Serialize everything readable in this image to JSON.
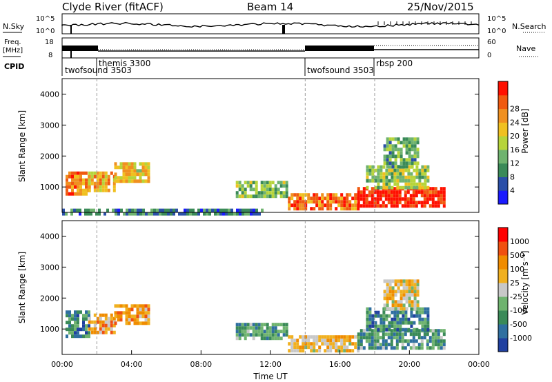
{
  "header": {
    "station": "Clyde River (fitACF)",
    "beam": "Beam 14",
    "date": "25/Nov/2015"
  },
  "strip_labels": {
    "nsky": "N.Sky",
    "nsky_ticks": [
      "10^5",
      "10^0"
    ],
    "nsearch": "N.Search",
    "nsearch_ticks": [
      "10^5",
      "10^0"
    ],
    "freq_line1": "Freq.",
    "freq_line2": "[MHz]",
    "freq_ticks": [
      "18",
      "8"
    ],
    "nave": "Nave",
    "nave_ticks": [
      "60",
      "0"
    ],
    "cpid": "CPID"
  },
  "cpid_segments": [
    {
      "name": "twofsound 3503"
    },
    {
      "name": "themis 3300"
    },
    {
      "name": "twofsound 3503"
    },
    {
      "name": "rbsp 200"
    }
  ],
  "colors": {
    "power": [
      "#1a1aff",
      "#2a4fa8",
      "#3a8a58",
      "#6fb36f",
      "#b6d43a",
      "#f0c020",
      "#f09020",
      "#f05a10",
      "#ff1000"
    ],
    "velocity": [
      "#2040a0",
      "#2f6fa0",
      "#3a8a58",
      "#6fb36f",
      "#c8c8c8",
      "#f0b020",
      "#f08c00",
      "#f05010",
      "#ff0000"
    ]
  },
  "chart_data": [
    {
      "type": "heatmap",
      "name": "power",
      "xlabel": "",
      "ylabel": "Slant Range [km]",
      "xlim": [
        0,
        24
      ],
      "ylim": [
        180,
        4500
      ],
      "yticks": [
        "1000",
        "2000",
        "3000",
        "4000"
      ],
      "colorbar_label": "Power [dB]",
      "colorbar_ticks": [
        "4",
        "8",
        "12",
        "16",
        "20",
        "24",
        "28"
      ],
      "regions": [
        {
          "t0": 0.2,
          "t1": 1.5,
          "r0": 800,
          "r1": 1500,
          "v": 0.75
        },
        {
          "t0": 1.5,
          "t1": 3.0,
          "r0": 900,
          "r1": 1500,
          "v": 0.65
        },
        {
          "t0": 3.0,
          "t1": 5.0,
          "r0": 1200,
          "r1": 1800,
          "v": 0.6
        },
        {
          "t0": 0.0,
          "t1": 11.5,
          "r0": 180,
          "r1": 300,
          "v": 0.25
        },
        {
          "t0": 10.0,
          "t1": 13.0,
          "r0": 700,
          "r1": 1200,
          "v": 0.4
        },
        {
          "t0": 13.0,
          "t1": 17.0,
          "r0": 300,
          "r1": 800,
          "v": 0.8
        },
        {
          "t0": 17.0,
          "t1": 22.0,
          "r0": 400,
          "r1": 1000,
          "v": 0.95
        },
        {
          "t0": 17.5,
          "t1": 21.0,
          "r0": 1000,
          "r1": 1700,
          "v": 0.45
        },
        {
          "t0": 18.5,
          "t1": 20.5,
          "r0": 1700,
          "r1": 2600,
          "v": 0.35
        }
      ]
    },
    {
      "type": "heatmap",
      "name": "velocity",
      "xlabel": "Time UT",
      "ylabel": "Slant Range [km]",
      "xlim": [
        0,
        24
      ],
      "ylim": [
        180,
        4500
      ],
      "xticks": [
        "00:00",
        "04:00",
        "08:00",
        "12:00",
        "16:00",
        "20:00",
        "00:00"
      ],
      "yticks": [
        "1000",
        "2000",
        "3000",
        "4000"
      ],
      "colorbar_label": "Velocity [m s⁻¹]",
      "colorbar_ticks": [
        "1000",
        "500",
        "100",
        "25",
        "-25",
        "-100",
        "-500",
        "-1000"
      ],
      "regions": [
        {
          "t0": 0.2,
          "t1": 1.5,
          "r0": 800,
          "r1": 1600,
          "v": 0.25
        },
        {
          "t0": 1.5,
          "t1": 3.0,
          "r0": 900,
          "r1": 1500,
          "v": 0.65
        },
        {
          "t0": 3.0,
          "t1": 5.0,
          "r0": 1200,
          "r1": 1800,
          "v": 0.7
        },
        {
          "t0": 10.0,
          "t1": 13.0,
          "r0": 700,
          "r1": 1200,
          "v": 0.3
        },
        {
          "t0": 13.0,
          "t1": 17.0,
          "r0": 300,
          "r1": 800,
          "v": 0.6
        },
        {
          "t0": 17.0,
          "t1": 22.0,
          "r0": 400,
          "r1": 1000,
          "v": 0.3
        },
        {
          "t0": 17.5,
          "t1": 21.0,
          "r0": 1000,
          "r1": 1700,
          "v": 0.25
        },
        {
          "t0": 18.5,
          "t1": 20.5,
          "r0": 1700,
          "r1": 2600,
          "v": 0.55
        }
      ]
    }
  ]
}
